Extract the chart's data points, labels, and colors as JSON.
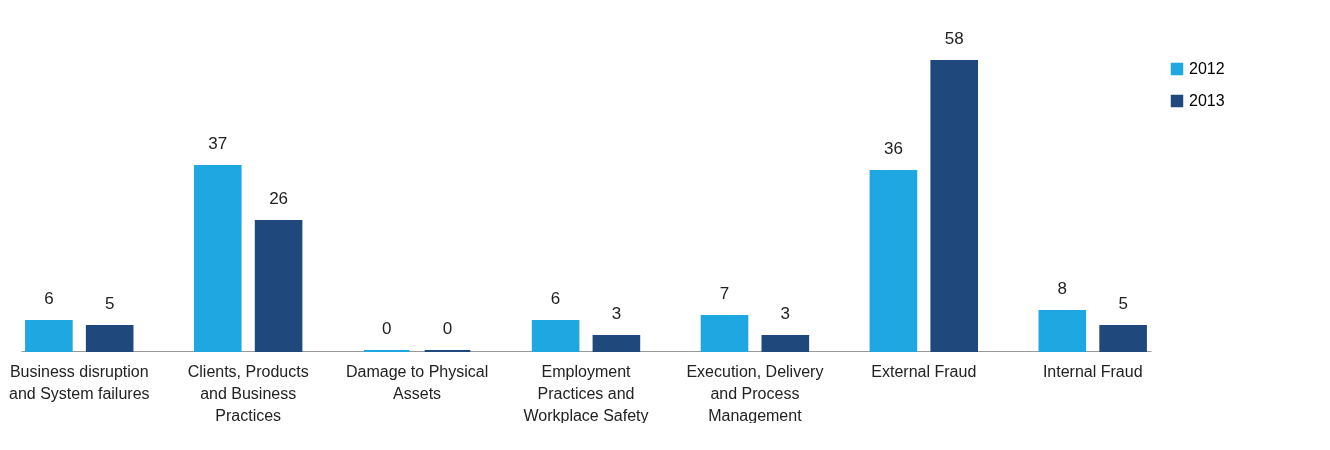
{
  "chart_data": {
    "type": "bar",
    "categories": [
      "Business disruption and System failures",
      "Clients, Products and Business Practices",
      "Damage to Physical Assets",
      "Employment Practices and Workplace Safety",
      "Execution, Delivery and Process Management",
      "External Fraud",
      "Internal Fraud"
    ],
    "series": [
      {
        "name": "2012",
        "color": "#1ea7e1",
        "values": [
          6,
          37,
          0,
          6,
          7,
          36,
          8
        ]
      },
      {
        "name": "2013",
        "color": "#1f497d",
        "values": [
          5,
          26,
          0,
          3,
          3,
          58,
          5
        ]
      }
    ],
    "data_labels": true,
    "legend": "right",
    "grid": false
  }
}
